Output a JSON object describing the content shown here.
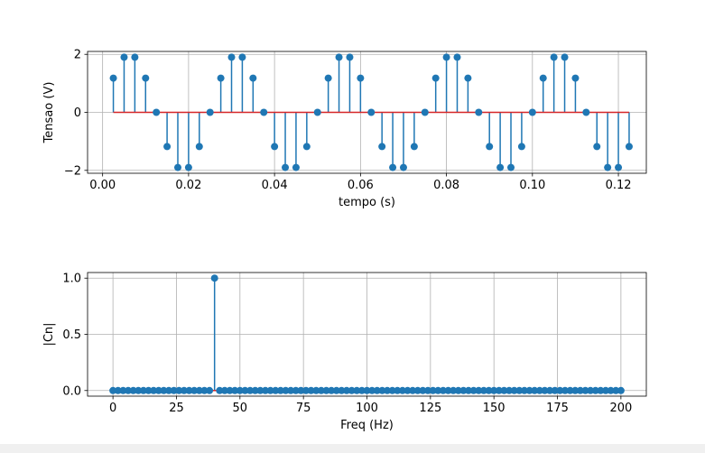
{
  "colors": {
    "stem": "#1f77b4",
    "baseline": "#d62728",
    "grid": "#b0b0b0",
    "axes": "#000000"
  },
  "chart_data": [
    {
      "type": "stem",
      "xlabel": "tempo (s)",
      "ylabel": "Tensao (V)",
      "xlim": [
        -0.0035,
        0.1265
      ],
      "ylim": [
        -2.1,
        2.1
      ],
      "grid": true,
      "xticks": [
        0.0,
        0.02,
        0.04,
        0.06,
        0.08,
        0.1,
        0.12
      ],
      "xtick_labels": [
        "0.00",
        "0.02",
        "0.04",
        "0.06",
        "0.08",
        "0.10",
        "0.12"
      ],
      "yticks": [
        -2,
        0,
        2
      ],
      "ytick_labels": [
        "−2",
        "0",
        "2"
      ],
      "baseline": 0,
      "x": [
        0.0025,
        0.005,
        0.0075,
        0.01,
        0.0125,
        0.015,
        0.0175,
        0.02,
        0.0225,
        0.025,
        0.0275,
        0.03,
        0.0325,
        0.035,
        0.0375,
        0.04,
        0.0425,
        0.045,
        0.0475,
        0.05,
        0.0525,
        0.055,
        0.0575,
        0.06,
        0.0625,
        0.065,
        0.0675,
        0.07,
        0.0725,
        0.075,
        0.0775,
        0.08,
        0.0825,
        0.085,
        0.0875,
        0.09,
        0.0925,
        0.095,
        0.0975,
        0.1,
        0.1025,
        0.105,
        0.1075,
        0.11,
        0.1125,
        0.115,
        0.1175,
        0.12,
        0.1225
      ],
      "y": [
        1.18,
        1.9,
        1.9,
        1.18,
        0,
        -1.18,
        -1.9,
        -1.9,
        -1.18,
        0,
        1.18,
        1.9,
        1.9,
        1.18,
        0,
        -1.18,
        -1.9,
        -1.9,
        -1.18,
        0,
        1.18,
        1.9,
        1.9,
        1.18,
        0,
        -1.18,
        -1.9,
        -1.9,
        -1.18,
        0,
        1.18,
        1.9,
        1.9,
        1.18,
        0,
        -1.18,
        -1.9,
        -1.9,
        -1.18,
        0,
        1.18,
        1.9,
        1.9,
        1.18,
        0,
        -1.18,
        -1.9,
        -1.9,
        -1.18
      ]
    },
    {
      "type": "stem",
      "xlabel": "Freq (Hz)",
      "ylabel": "|Cn|",
      "xlim": [
        -10,
        210
      ],
      "ylim": [
        -0.05,
        1.05
      ],
      "grid": true,
      "xticks": [
        0,
        25,
        50,
        75,
        100,
        125,
        150,
        175,
        200
      ],
      "xtick_labels": [
        "0",
        "25",
        "50",
        "75",
        "100",
        "125",
        "150",
        "175",
        "200"
      ],
      "yticks": [
        0,
        0.5,
        1.0
      ],
      "ytick_labels": [
        "0.0",
        "0.5",
        "1.0"
      ],
      "baseline": 0,
      "x_range": {
        "start": 0,
        "end": 200,
        "step": 2
      },
      "nonzero_points": [
        {
          "x": 40,
          "y": 1.0
        }
      ],
      "other_values": 0
    }
  ]
}
